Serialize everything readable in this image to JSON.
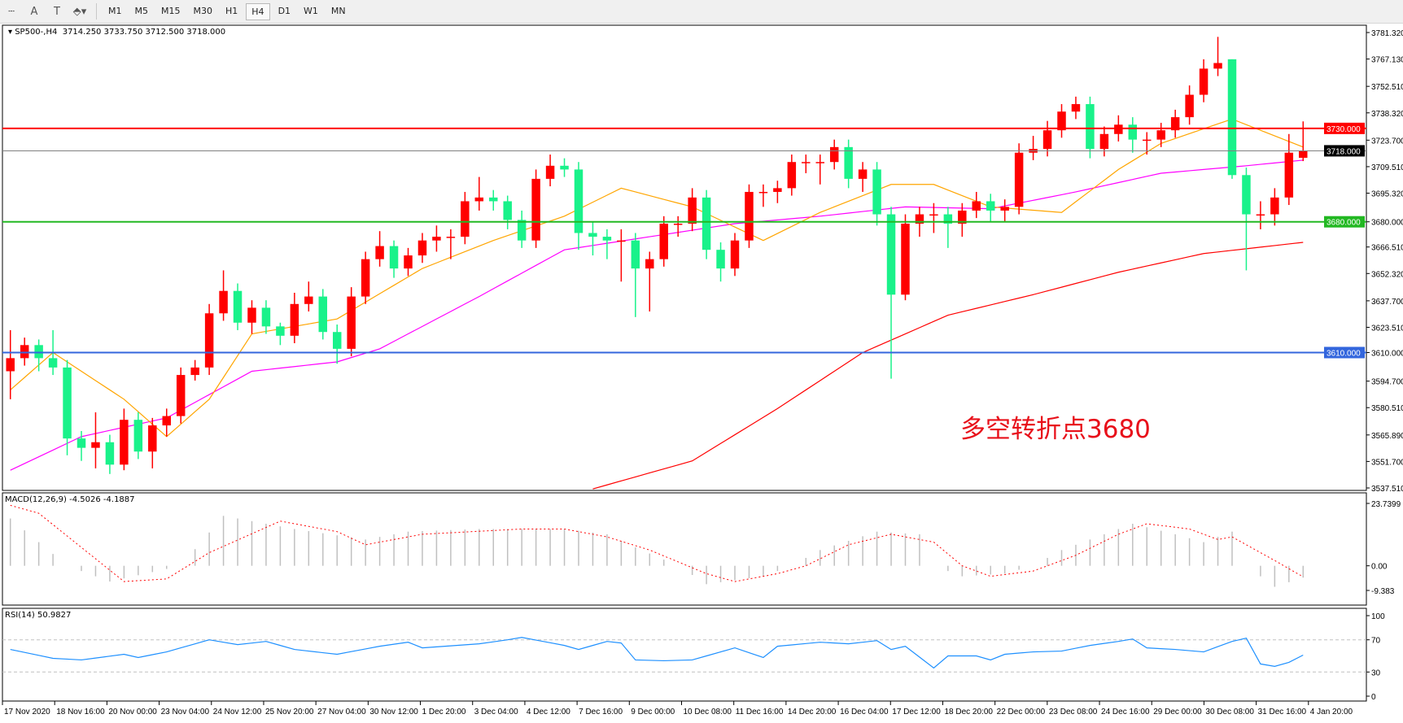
{
  "toolbar": {
    "icons": [
      "period-separator-icon",
      "text-label-icon",
      "text-box-icon",
      "arrows-icon"
    ],
    "timeframes": [
      "M1",
      "M5",
      "M15",
      "M30",
      "H1",
      "H4",
      "D1",
      "W1",
      "MN"
    ],
    "active_timeframe": "H4"
  },
  "chart_header": {
    "symbol": "SP500-,H4",
    "ohlc_text": "3714.250 3733.750 3712.500 3718.000"
  },
  "annotation": "多空转折点3680",
  "colors": {
    "bull": "#ff0000",
    "bear": "#19f28a",
    "ma_fast": "#ffa500",
    "ma_mid": "#ff00ff",
    "ma_slow": "#ff0000",
    "macd_hist": "#c0c0c0",
    "macd_signal": "#ff0000",
    "rsi": "#1e90ff"
  },
  "chart_data": [
    {
      "type": "candlestick",
      "title": "SP500-,H4",
      "ylim": [
        3537.51,
        3781.32
      ],
      "y_ticks": [
        "3781.320",
        "3767.130",
        "3752.510",
        "3738.320",
        "3723.700",
        "3709.510",
        "3695.320",
        "3680.000",
        "3666.510",
        "3652.320",
        "3637.700",
        "3623.510",
        "3610.000",
        "3594.700",
        "3580.510",
        "3565.890",
        "3551.700",
        "3537.510"
      ],
      "y_tick_values": [
        3781.32,
        3767.13,
        3752.51,
        3738.32,
        3723.7,
        3709.51,
        3695.32,
        3680.0,
        3666.51,
        3652.32,
        3637.7,
        3623.51,
        3610.0,
        3594.7,
        3580.51,
        3565.89,
        3551.7,
        3537.51
      ],
      "x_labels": [
        "17 Nov 2020",
        "18 Nov 16:00",
        "20 Nov 00:00",
        "23 Nov 04:00",
        "24 Nov 12:00",
        "25 Nov 20:00",
        "27 Nov 04:00",
        "30 Nov 12:00",
        "1 Dec 20:00",
        "3 Dec 04:00",
        "4 Dec 12:00",
        "7 Dec 16:00",
        "9 Dec 00:00",
        "10 Dec 08:00",
        "11 Dec 16:00",
        "14 Dec 20:00",
        "16 Dec 04:00",
        "17 Dec 12:00",
        "18 Dec 20:00",
        "22 Dec 00:00",
        "23 Dec 08:00",
        "24 Dec 16:00",
        "29 Dec 00:00",
        "30 Dec 08:00",
        "31 Dec 16:00",
        "4 Jan 20:00"
      ],
      "levels": [
        {
          "value": 3730.0,
          "label": "3730.000",
          "color": "#ff0000"
        },
        {
          "value": 3718.0,
          "label": "3718.000",
          "color": "#808080",
          "label_bg": "#000000"
        },
        {
          "value": 3680.0,
          "label": "3680.000",
          "color": "#22b822"
        },
        {
          "value": 3610.0,
          "label": "3610.000",
          "color": "#3366dd"
        }
      ],
      "ohlc": [
        [
          3600,
          3622,
          3585,
          3607
        ],
        [
          3607,
          3618,
          3603,
          3614
        ],
        [
          3614,
          3617,
          3600,
          3607
        ],
        [
          3607,
          3622,
          3598,
          3602
        ],
        [
          3602,
          3606,
          3555,
          3564
        ],
        [
          3564,
          3568,
          3552,
          3559
        ],
        [
          3559,
          3578,
          3548,
          3562
        ],
        [
          3562,
          3566,
          3545,
          3550
        ],
        [
          3550,
          3580,
          3547,
          3574
        ],
        [
          3574,
          3578,
          3553,
          3557
        ],
        [
          3557,
          3575,
          3548,
          3571
        ],
        [
          3571,
          3580,
          3565,
          3576
        ],
        [
          3576,
          3602,
          3572,
          3598
        ],
        [
          3598,
          3606,
          3595,
          3602
        ],
        [
          3602,
          3636,
          3598,
          3631
        ],
        [
          3631,
          3654,
          3627,
          3643
        ],
        [
          3643,
          3647,
          3622,
          3626
        ],
        [
          3626,
          3638,
          3620,
          3634
        ],
        [
          3634,
          3638,
          3620,
          3624
        ],
        [
          3624,
          3626,
          3614,
          3619
        ],
        [
          3619,
          3642,
          3615,
          3636
        ],
        [
          3636,
          3648,
          3632,
          3640
        ],
        [
          3640,
          3644,
          3617,
          3621
        ],
        [
          3621,
          3625,
          3604,
          3612
        ],
        [
          3612,
          3645,
          3608,
          3640
        ],
        [
          3640,
          3664,
          3636,
          3660
        ],
        [
          3660,
          3675,
          3656,
          3667
        ],
        [
          3667,
          3670,
          3650,
          3655
        ],
        [
          3655,
          3666,
          3651,
          3662
        ],
        [
          3662,
          3674,
          3658,
          3670
        ],
        [
          3670,
          3678,
          3664,
          3672
        ],
        [
          3672,
          3676,
          3660,
          3672
        ],
        [
          3672,
          3696,
          3668,
          3691
        ],
        [
          3691,
          3704,
          3686,
          3693
        ],
        [
          3693,
          3697,
          3686,
          3691
        ],
        [
          3691,
          3694,
          3676,
          3681
        ],
        [
          3681,
          3686,
          3666,
          3670
        ],
        [
          3670,
          3708,
          3666,
          3703
        ],
        [
          3703,
          3716,
          3699,
          3710
        ],
        [
          3710,
          3714,
          3704,
          3708
        ],
        [
          3708,
          3712,
          3665,
          3674
        ],
        [
          3674,
          3680,
          3662,
          3672
        ],
        [
          3672,
          3676,
          3660,
          3670
        ],
        [
          3670,
          3676,
          3648,
          3670
        ],
        [
          3670,
          3674,
          3629,
          3655
        ],
        [
          3655,
          3664,
          3632,
          3660
        ],
        [
          3660,
          3683,
          3656,
          3679
        ],
        [
          3679,
          3683,
          3672,
          3679
        ],
        [
          3679,
          3698,
          3675,
          3693
        ],
        [
          3693,
          3697,
          3660,
          3665
        ],
        [
          3665,
          3669,
          3648,
          3655
        ],
        [
          3655,
          3674,
          3651,
          3670
        ],
        [
          3670,
          3700,
          3666,
          3696
        ],
        [
          3696,
          3700,
          3688,
          3696
        ],
        [
          3696,
          3702,
          3690,
          3698
        ],
        [
          3698,
          3716,
          3694,
          3712
        ],
        [
          3712,
          3716,
          3706,
          3712
        ],
        [
          3712,
          3716,
          3700,
          3712
        ],
        [
          3712,
          3724,
          3708,
          3720
        ],
        [
          3720,
          3724,
          3698,
          3703
        ],
        [
          3703,
          3712,
          3696,
          3708
        ],
        [
          3708,
          3712,
          3678,
          3684
        ],
        [
          3684,
          3688,
          3596,
          3641
        ],
        [
          3641,
          3684,
          3638,
          3679
        ],
        [
          3679,
          3688,
          3672,
          3684
        ],
        [
          3684,
          3690,
          3674,
          3684
        ],
        [
          3684,
          3688,
          3666,
          3679
        ],
        [
          3679,
          3690,
          3672,
          3686
        ],
        [
          3686,
          3696,
          3682,
          3691
        ],
        [
          3691,
          3695,
          3680,
          3686
        ],
        [
          3686,
          3692,
          3680,
          3688
        ],
        [
          3688,
          3722,
          3684,
          3717
        ],
        [
          3717,
          3726,
          3713,
          3719
        ],
        [
          3719,
          3734,
          3715,
          3729
        ],
        [
          3729,
          3743,
          3725,
          3739
        ],
        [
          3739,
          3747,
          3735,
          3743
        ],
        [
          3743,
          3747,
          3714,
          3719
        ],
        [
          3719,
          3731,
          3715,
          3727
        ],
        [
          3727,
          3737,
          3723,
          3732
        ],
        [
          3732,
          3736,
          3717,
          3724
        ],
        [
          3724,
          3728,
          3716,
          3724
        ],
        [
          3724,
          3733,
          3720,
          3729
        ],
        [
          3729,
          3740,
          3725,
          3736
        ],
        [
          3736,
          3753,
          3732,
          3748
        ],
        [
          3748,
          3767,
          3744,
          3762
        ],
        [
          3762,
          3779,
          3758,
          3765
        ],
        [
          3767,
          3767,
          3703,
          3705
        ],
        [
          3705,
          3709,
          3654,
          3684
        ],
        [
          3684,
          3691,
          3676,
          3684
        ],
        [
          3684,
          3698,
          3678,
          3693
        ],
        [
          3693,
          3727,
          3689,
          3717
        ],
        [
          3714.25,
          3733.75,
          3712.5,
          3718
        ]
      ],
      "moving_averages": {
        "fast": [
          [
            1,
            3590
          ],
          [
            4,
            3610
          ],
          [
            9,
            3585
          ],
          [
            12,
            3565
          ],
          [
            15,
            3585
          ],
          [
            18,
            3620
          ],
          [
            24,
            3628
          ],
          [
            30,
            3655
          ],
          [
            35,
            3670
          ],
          [
            40,
            3683
          ],
          [
            44,
            3698
          ],
          [
            49,
            3688
          ],
          [
            54,
            3670
          ],
          [
            58,
            3685
          ],
          [
            63,
            3700
          ],
          [
            66,
            3700
          ],
          [
            70,
            3688
          ],
          [
            75,
            3685
          ],
          [
            79,
            3708
          ],
          [
            82,
            3722
          ],
          [
            87,
            3735
          ],
          [
            92,
            3720
          ]
        ],
        "mid": [
          [
            1,
            3547
          ],
          [
            6,
            3565
          ],
          [
            12,
            3575
          ],
          [
            18,
            3600
          ],
          [
            24,
            3605
          ],
          [
            27,
            3612
          ],
          [
            34,
            3640
          ],
          [
            40,
            3665
          ],
          [
            46,
            3672
          ],
          [
            52,
            3679
          ],
          [
            58,
            3683
          ],
          [
            64,
            3688
          ],
          [
            70,
            3687
          ],
          [
            76,
            3696
          ],
          [
            82,
            3706
          ],
          [
            88,
            3710
          ],
          [
            92,
            3713
          ]
        ],
        "slow": [
          [
            42,
            3537
          ],
          [
            49,
            3552
          ],
          [
            55,
            3580
          ],
          [
            61,
            3610
          ],
          [
            67,
            3630
          ],
          [
            73,
            3641
          ],
          [
            79,
            3653
          ],
          [
            85,
            3663
          ],
          [
            92,
            3669
          ]
        ]
      }
    },
    {
      "type": "bar+line",
      "title": "MACD(12,26,9) -4.5026 -4.1887",
      "label": "MACD(12,26,9)",
      "values_text": "-4.5026 -4.1887",
      "ylim": [
        -9.383,
        23.7399
      ],
      "y_ticks": [
        "23.7399",
        "0.00",
        "-9.383"
      ],
      "y_tick_values": [
        23.7399,
        0,
        -9.383
      ],
      "histogram": [
        [
          1,
          18
        ],
        [
          5,
          0
        ],
        [
          8,
          -6
        ],
        [
          13,
          0
        ],
        [
          16,
          19
        ],
        [
          21,
          14
        ],
        [
          26,
          10
        ],
        [
          29,
          13
        ],
        [
          34,
          14
        ],
        [
          40,
          14
        ],
        [
          43,
          12
        ],
        [
          45,
          7
        ],
        [
          48,
          0
        ],
        [
          50,
          -7
        ],
        [
          54,
          -4
        ],
        [
          56,
          0
        ],
        [
          58,
          6
        ],
        [
          62,
          13
        ],
        [
          65,
          12
        ],
        [
          66,
          0
        ],
        [
          68,
          -4
        ],
        [
          71,
          -3
        ],
        [
          73,
          0
        ],
        [
          75,
          6
        ],
        [
          79,
          14
        ],
        [
          80,
          16
        ],
        [
          83,
          12
        ],
        [
          85,
          9
        ],
        [
          87,
          13
        ],
        [
          88,
          0
        ],
        [
          90,
          -8
        ],
        [
          92,
          -4.5
        ]
      ],
      "signal": [
        [
          1,
          23
        ],
        [
          3,
          20
        ],
        [
          9,
          -6
        ],
        [
          12,
          -5
        ],
        [
          15,
          5
        ],
        [
          20,
          17
        ],
        [
          24,
          13
        ],
        [
          26,
          8
        ],
        [
          30,
          12
        ],
        [
          37,
          14
        ],
        [
          40,
          14
        ],
        [
          43,
          11
        ],
        [
          46,
          6
        ],
        [
          50,
          -3
        ],
        [
          52,
          -6
        ],
        [
          55,
          -3
        ],
        [
          57,
          0
        ],
        [
          60,
          8
        ],
        [
          63,
          12
        ],
        [
          66,
          9
        ],
        [
          68,
          0
        ],
        [
          70,
          -4
        ],
        [
          73,
          -2
        ],
        [
          76,
          4
        ],
        [
          79,
          12
        ],
        [
          81,
          16
        ],
        [
          84,
          14
        ],
        [
          86,
          10
        ],
        [
          87,
          11
        ],
        [
          90,
          2
        ],
        [
          92,
          -4.2
        ]
      ]
    },
    {
      "type": "line",
      "title": "RSI(14) 50.9827",
      "label": "RSI(14)",
      "values_text": "50.9827",
      "ylim": [
        0,
        100
      ],
      "y_ticks": [
        "100",
        "70",
        "30",
        "0"
      ],
      "y_tick_values": [
        100,
        70,
        30,
        0
      ],
      "levels": [
        70,
        30
      ],
      "values": [
        [
          1,
          58
        ],
        [
          4,
          47
        ],
        [
          6,
          45
        ],
        [
          9,
          52
        ],
        [
          10,
          48
        ],
        [
          12,
          55
        ],
        [
          14,
          65
        ],
        [
          15,
          70
        ],
        [
          17,
          64
        ],
        [
          19,
          68
        ],
        [
          21,
          58
        ],
        [
          24,
          52
        ],
        [
          27,
          62
        ],
        [
          29,
          67
        ],
        [
          30,
          60
        ],
        [
          34,
          65
        ],
        [
          36,
          70
        ],
        [
          37,
          73
        ],
        [
          40,
          63
        ],
        [
          41,
          58
        ],
        [
          43,
          68
        ],
        [
          44,
          66
        ],
        [
          45,
          45
        ],
        [
          47,
          44
        ],
        [
          49,
          45
        ],
        [
          51,
          55
        ],
        [
          52,
          60
        ],
        [
          54,
          48
        ],
        [
          55,
          62
        ],
        [
          58,
          67
        ],
        [
          60,
          65
        ],
        [
          62,
          69
        ],
        [
          63,
          58
        ],
        [
          64,
          62
        ],
        [
          66,
          35
        ],
        [
          67,
          50
        ],
        [
          69,
          50
        ],
        [
          70,
          45
        ],
        [
          71,
          52
        ],
        [
          73,
          55
        ],
        [
          75,
          56
        ],
        [
          77,
          63
        ],
        [
          79,
          68
        ],
        [
          80,
          71
        ],
        [
          81,
          60
        ],
        [
          83,
          58
        ],
        [
          85,
          55
        ],
        [
          87,
          68
        ],
        [
          88,
          72
        ],
        [
          89,
          40
        ],
        [
          90,
          37
        ],
        [
          91,
          42
        ],
        [
          92,
          51
        ]
      ]
    }
  ]
}
